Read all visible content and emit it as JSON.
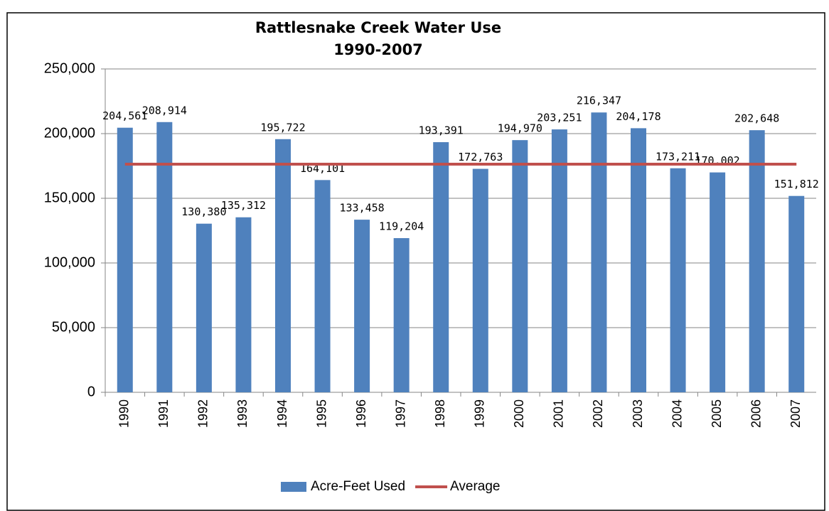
{
  "chart_data": {
    "type": "bar",
    "title": "Rattlesnake Creek Water Use",
    "subtitle": "1990-2007",
    "categories": [
      "1990",
      "1991",
      "1992",
      "1993",
      "1994",
      "1995",
      "1996",
      "1997",
      "1998",
      "1999",
      "2000",
      "2001",
      "2002",
      "2003",
      "2004",
      "2005",
      "2006",
      "2007"
    ],
    "series": [
      {
        "name": "Acre-Feet Used",
        "type": "bar",
        "color": "#4f81bd",
        "values": [
          204561,
          208914,
          130380,
          135312,
          195722,
          164101,
          133458,
          119204,
          193391,
          172763,
          194970,
          203251,
          216347,
          204178,
          173211,
          170002,
          202648,
          151812
        ],
        "value_labels": [
          "204,561",
          "208,914",
          "130,380",
          "135,312",
          "195,722",
          "164,101",
          "133,458",
          "119,204",
          "193,391",
          "172,763",
          "194,970",
          "203,251",
          "216,347",
          "204,178",
          "173,211",
          "170,002",
          "202,648",
          "151,812"
        ]
      },
      {
        "name": "Average",
        "type": "line",
        "color": "#c0504d",
        "values": [
          176346,
          176346,
          176346,
          176346,
          176346,
          176346,
          176346,
          176346,
          176346,
          176346,
          176346,
          176346,
          176346,
          176346,
          176346,
          176346,
          176346,
          176346
        ]
      }
    ],
    "ylim": [
      0,
      250000
    ],
    "yticks": [
      {
        "value": 0,
        "label": "0"
      },
      {
        "value": 50000,
        "label": "50,000"
      },
      {
        "value": 100000,
        "label": "100,000"
      },
      {
        "value": 150000,
        "label": "150,000"
      },
      {
        "value": 200000,
        "label": "200,000"
      },
      {
        "value": 250000,
        "label": "250,000"
      }
    ],
    "grid": true,
    "legend": "bottom"
  }
}
